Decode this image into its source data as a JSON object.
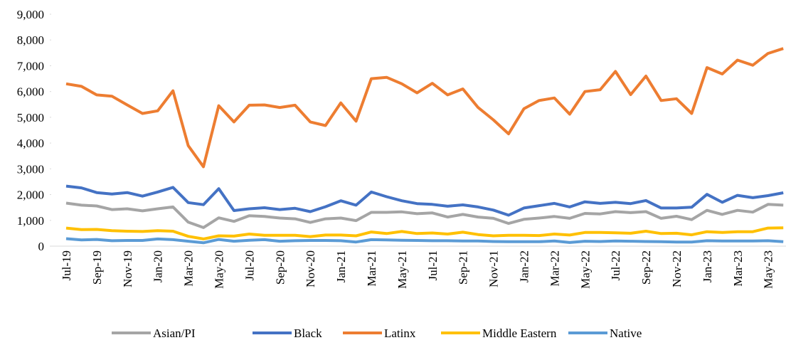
{
  "chart_data": {
    "type": "line",
    "categories": [
      "Jul-19",
      null,
      "Sep-19",
      null,
      "Nov-19",
      null,
      "Jan-20",
      null,
      "Mar-20",
      null,
      "May-20",
      null,
      "Jul-20",
      null,
      "Sep-20",
      null,
      "Nov-20",
      null,
      "Jan-21",
      null,
      "Mar-21",
      null,
      "May-21",
      null,
      "Jul-21",
      null,
      "Sep-21",
      null,
      "Nov-21",
      null,
      "Jan-22",
      null,
      "Mar-22",
      null,
      "May-22",
      null,
      "Jul-22",
      null,
      "Sep-22",
      null,
      "Nov-22",
      null,
      "Jan-23",
      null,
      "Mar-23",
      null,
      "May-23",
      null
    ],
    "series": [
      {
        "name": "Asian/PI",
        "color": "#a5a5a5",
        "values": [
          1670,
          1590,
          1560,
          1420,
          1450,
          1370,
          1450,
          1520,
          930,
          720,
          1100,
          960,
          1180,
          1150,
          1090,
          1060,
          920,
          1060,
          1090,
          990,
          1310,
          1310,
          1330,
          1260,
          1290,
          1130,
          1230,
          1130,
          1080,
          880,
          1040,
          1090,
          1150,
          1080,
          1270,
          1250,
          1340,
          1300,
          1340,
          1080,
          1160,
          1030,
          1390,
          1230,
          1390,
          1320,
          1620,
          1590
        ]
      },
      {
        "name": "Black",
        "color": "#4472c4",
        "values": [
          2330,
          2260,
          2080,
          2020,
          2080,
          1940,
          2100,
          2280,
          1690,
          1610,
          2230,
          1380,
          1450,
          1490,
          1420,
          1470,
          1340,
          1530,
          1760,
          1590,
          2100,
          1920,
          1760,
          1650,
          1620,
          1550,
          1600,
          1520,
          1400,
          1200,
          1480,
          1570,
          1660,
          1520,
          1720,
          1660,
          1700,
          1650,
          1770,
          1480,
          1480,
          1510,
          2010,
          1700,
          1970,
          1880,
          1960,
          2070
        ]
      },
      {
        "name": "Latinx",
        "color": "#ed7d31",
        "values": [
          6300,
          6200,
          5870,
          5820,
          5480,
          5150,
          5250,
          6030,
          3900,
          3080,
          5450,
          4820,
          5470,
          5480,
          5380,
          5470,
          4820,
          4680,
          5560,
          4850,
          6500,
          6550,
          6300,
          5950,
          6320,
          5870,
          6100,
          5380,
          4900,
          4360,
          5330,
          5650,
          5750,
          5120,
          6000,
          6070,
          6780,
          5880,
          6600,
          5650,
          5720,
          5150,
          6930,
          6680,
          7220,
          7020,
          7480,
          7670
        ]
      },
      {
        "name": "Middle Eastern",
        "color": "#ffc000",
        "values": [
          700,
          640,
          650,
          600,
          580,
          570,
          600,
          580,
          380,
          280,
          400,
          390,
          470,
          420,
          420,
          420,
          370,
          430,
          430,
          400,
          550,
          490,
          570,
          490,
          510,
          470,
          540,
          450,
          400,
          420,
          420,
          410,
          470,
          430,
          530,
          530,
          520,
          500,
          580,
          490,
          500,
          440,
          560,
          530,
          560,
          560,
          700,
          710
        ]
      },
      {
        "name": "Native",
        "color": "#5b9bd5",
        "values": [
          290,
          240,
          260,
          210,
          220,
          220,
          280,
          250,
          190,
          130,
          260,
          190,
          230,
          250,
          190,
          210,
          220,
          220,
          210,
          160,
          250,
          240,
          230,
          220,
          210,
          210,
          200,
          200,
          180,
          170,
          170,
          170,
          200,
          140,
          190,
          180,
          200,
          190,
          180,
          170,
          160,
          160,
          210,
          200,
          200,
          200,
          210,
          170
        ]
      }
    ],
    "ylim": [
      0,
      9000
    ],
    "yticks": [
      0,
      {
        "value": 1000,
        "label": "1,000"
      },
      {
        "value": 2000,
        "label": "2,000"
      },
      {
        "value": 3000,
        "label": "3,000"
      },
      {
        "value": 4000,
        "label": "4,000"
      },
      {
        "value": 5000,
        "label": "5,000"
      },
      {
        "value": 6000,
        "label": "6,000"
      },
      {
        "value": 7000,
        "label": "7,000"
      },
      {
        "value": 8000,
        "label": "8,000"
      },
      {
        "value": 9000,
        "label": "9,000"
      }
    ],
    "legend": "bottom"
  }
}
